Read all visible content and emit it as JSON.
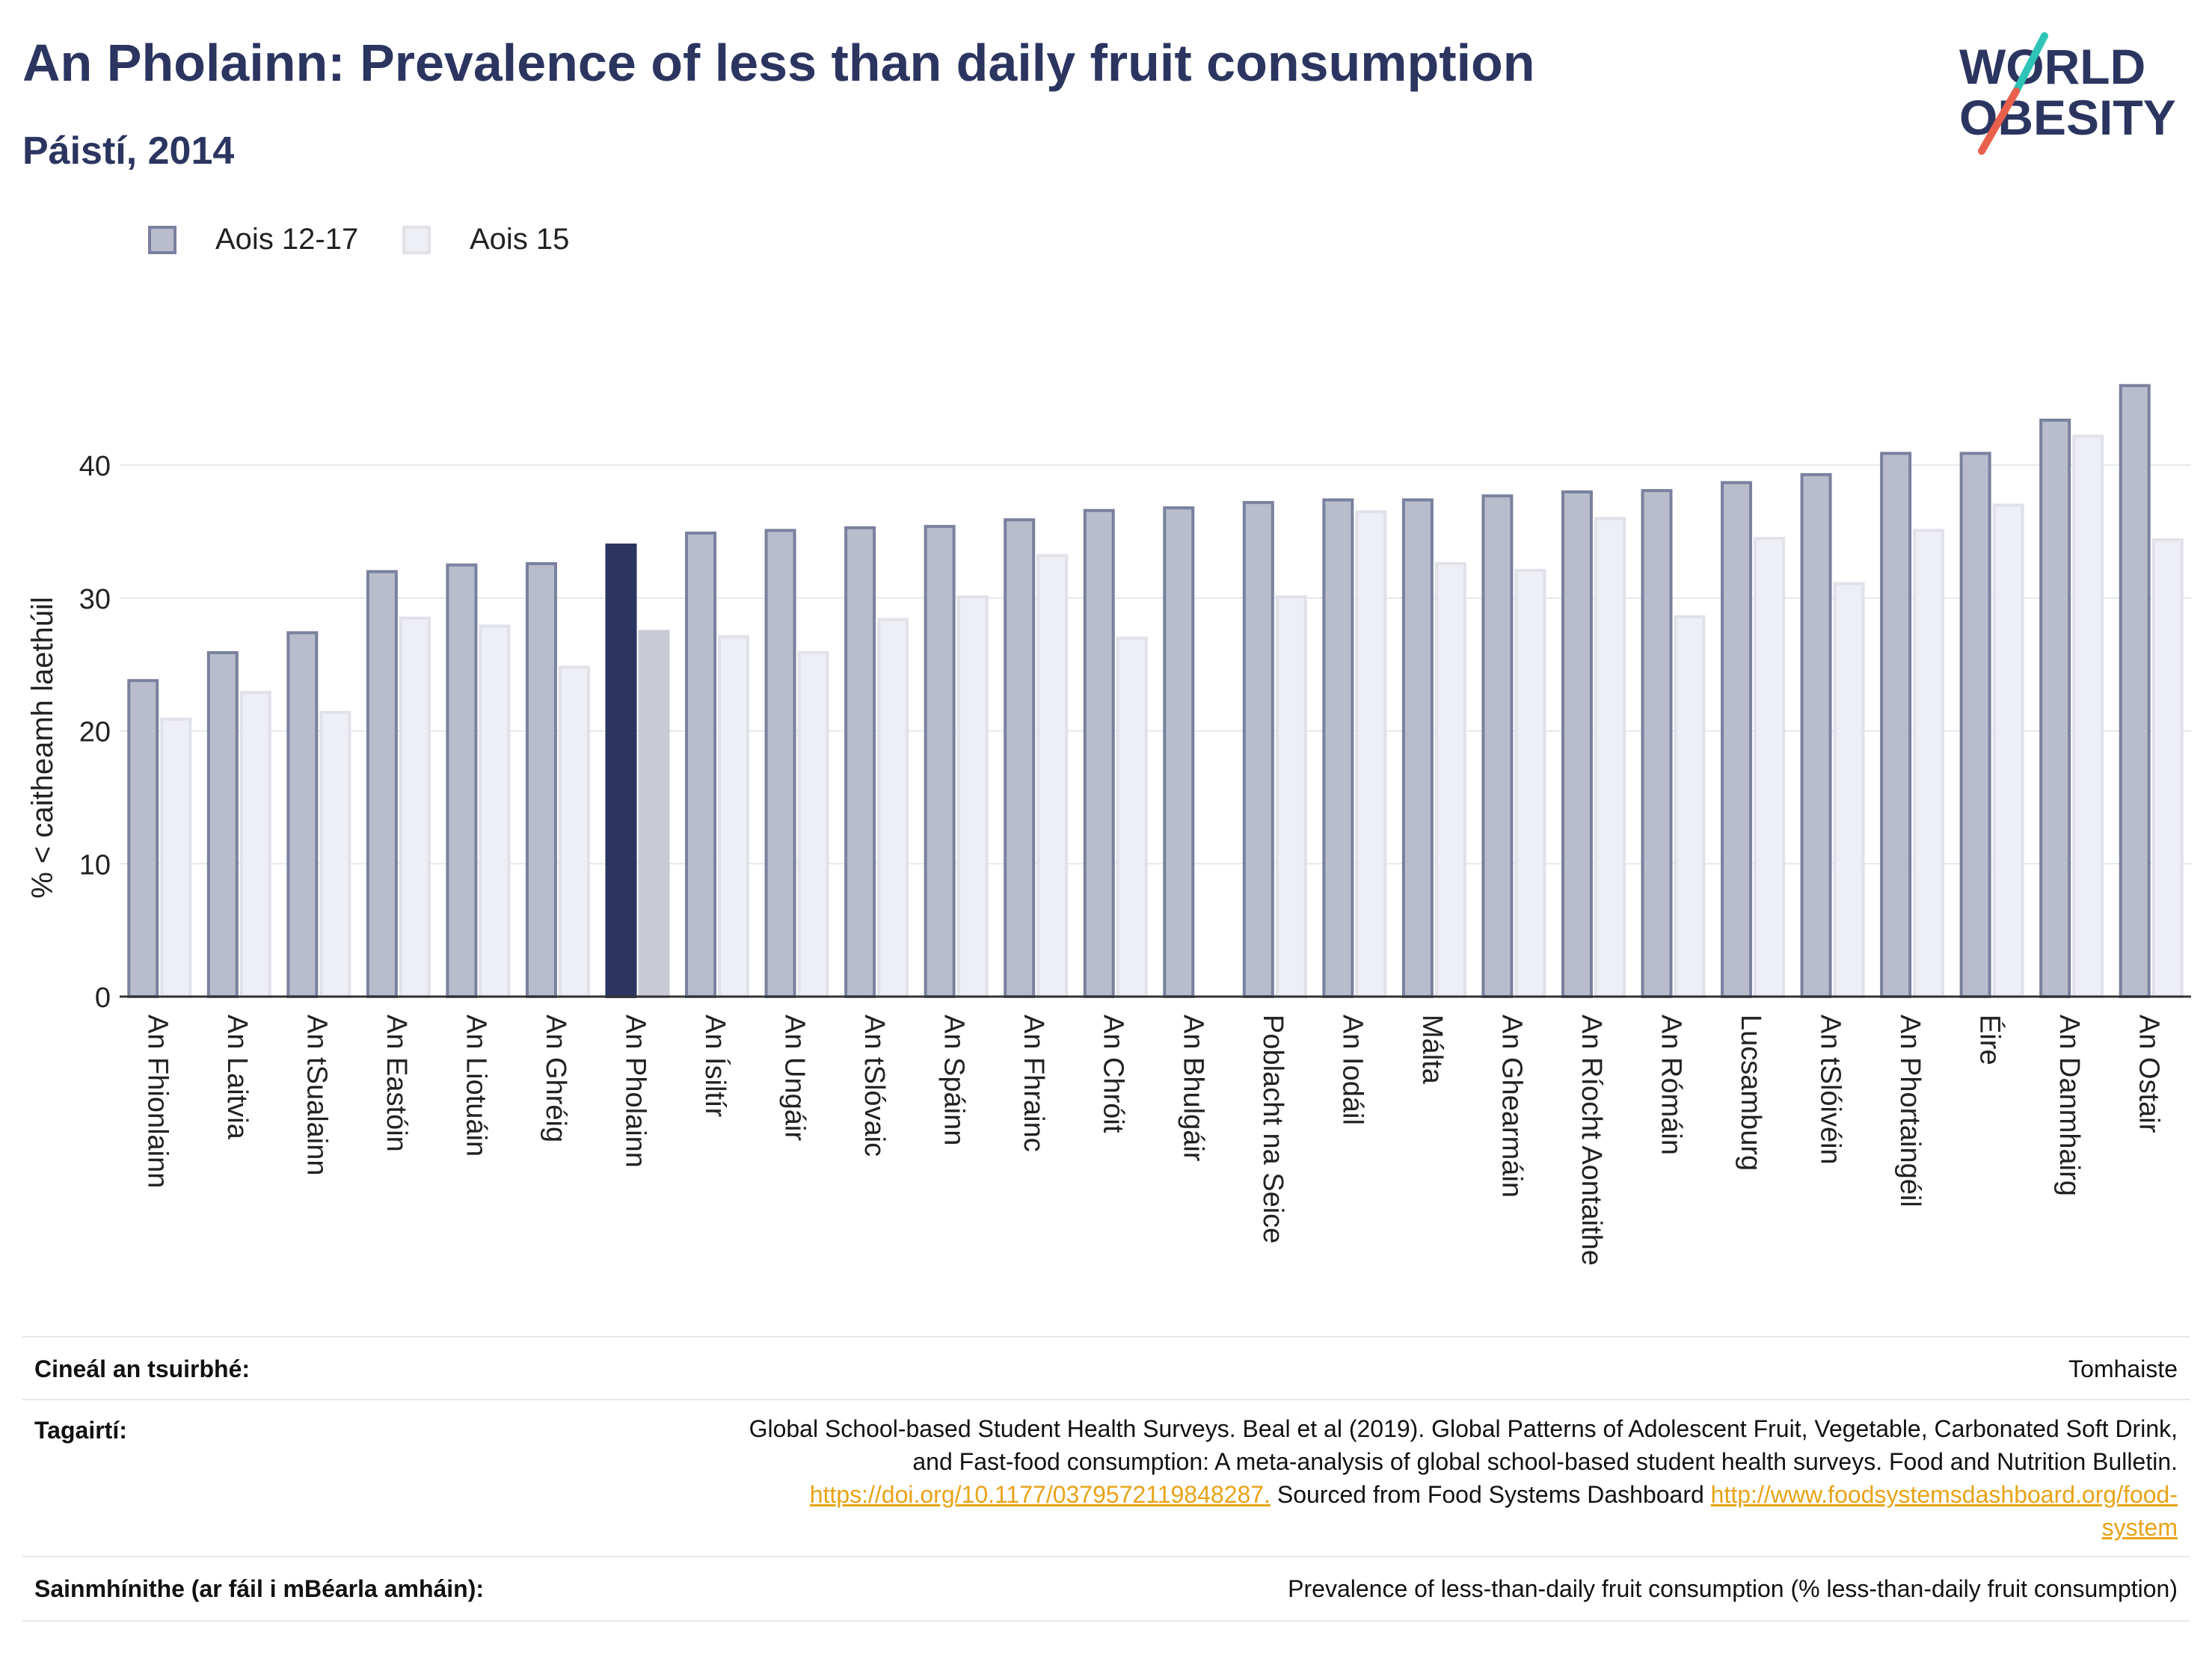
{
  "header": {
    "title": "An Pholainn: Prevalence of less than daily fruit consumption",
    "subtitle": "Páistí, 2014"
  },
  "logo": {
    "line1": "WORLD",
    "line2": "OBESITY"
  },
  "colors": {
    "series1": "#9aa0b8",
    "series1_border": "#6b7393",
    "series2": "#e6e7ef",
    "series2_border": "#d8d9e3",
    "highlight1": "#2b3560",
    "highlight2": "#c8cad6",
    "grid": "#e6e8ef",
    "axis": "#333333",
    "link": "#e8a317",
    "logo_slash_top": "#2ec4b6",
    "logo_slash_bottom": "#e8604c"
  },
  "chart_data": {
    "type": "bar",
    "ylabel": "% < caitheamh laethúil",
    "ylim": [
      0,
      48
    ],
    "yticks": [
      0,
      10,
      20,
      30,
      40
    ],
    "grid": true,
    "legend_position": "top-left",
    "highlight_category": "An Pholainn",
    "categories": [
      "An Fhionlainn",
      "An Laitvia",
      "An tSualainn",
      "An Eastóin",
      "An Liotuáin",
      "An Ghréig",
      "An Pholainn",
      "An Ísiltír",
      "An Ungáir",
      "An tSlóvaic",
      "An Spáinn",
      "An Fhrainc",
      "An Chróit",
      "An Bhulgáir",
      "Poblacht na Seice",
      "An Iodáil",
      "Málta",
      "An Ghearmáin",
      "An Ríocht Aontaithe",
      "An Rómáin",
      "Lucsamburg",
      "An tSlóivéin",
      "An Phortaingéil",
      "Éire",
      "An Danmhairg",
      "An Ostair"
    ],
    "series": [
      {
        "name": "Aois 12-17",
        "values": [
          23.9,
          26.0,
          27.5,
          32.1,
          32.6,
          32.7,
          34.1,
          35.0,
          35.2,
          35.4,
          35.5,
          36.0,
          36.7,
          36.9,
          37.3,
          37.5,
          37.5,
          37.8,
          38.1,
          38.2,
          38.8,
          39.4,
          41.0,
          41.0,
          43.5,
          46.1
        ]
      },
      {
        "name": "Aois 15",
        "values": [
          21.0,
          23.0,
          21.5,
          28.6,
          28.0,
          24.9,
          27.6,
          27.2,
          26.0,
          28.5,
          30.2,
          33.3,
          27.1,
          null,
          30.2,
          36.6,
          32.7,
          32.2,
          36.1,
          28.7,
          34.6,
          31.2,
          35.2,
          37.1,
          42.3,
          34.5
        ]
      }
    ]
  },
  "footer": {
    "survey_type_label": "Cineál an tsuirbhé:",
    "survey_type_value": "Tomhaiste",
    "references_label": "Tagairtí:",
    "references_line1": "Global School-based Student Health Surveys. Beal et al (2019). Global Patterns of Adolescent Fruit, Vegetable, Carbonated Soft Drink,",
    "references_line2": "and Fast-food consumption: A meta-analysis of global school-based student health surveys. Food and Nutrition Bulletin.",
    "references_link1": "https://doi.org/10.1177/0379572119848287.",
    "references_mid": " Sourced from Food Systems Dashboard ",
    "references_link2a": "http://www.foodsystemsdashboard.org/food-",
    "references_link2b": "system",
    "definitions_label": "Sainmhínithe (ar fáil i mBéarla amháin):",
    "definitions_value": "Prevalence of less-than-daily fruit consumption (% less-than-daily fruit consumption)"
  }
}
